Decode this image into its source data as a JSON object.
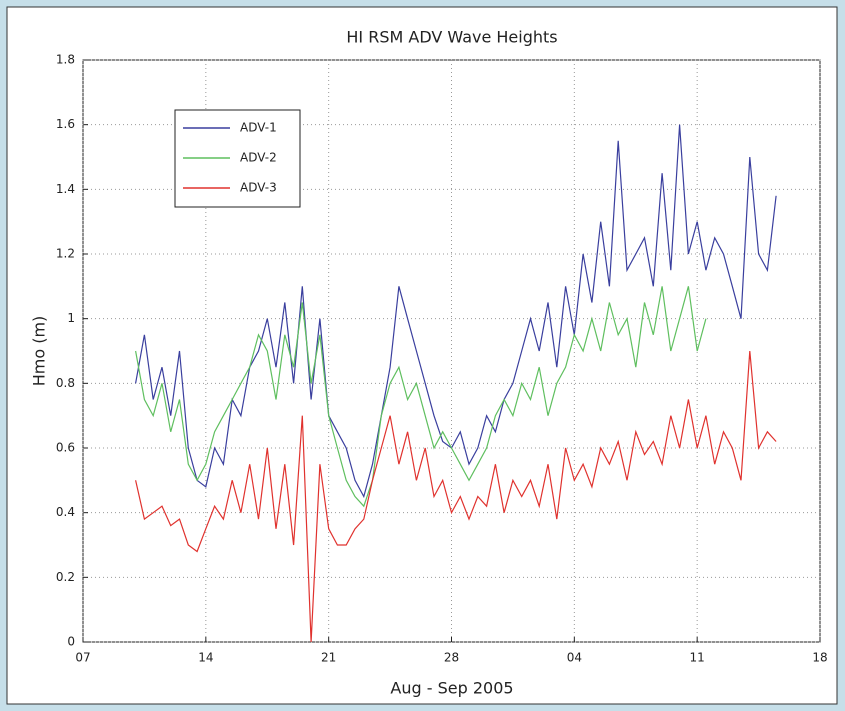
{
  "chart_data": {
    "type": "line",
    "title": "HI RSM ADV Wave Heights",
    "x_label": "Aug - Sep 2005",
    "y_label": "Hmo (m)",
    "x": [
      10,
      10.5,
      11,
      11.5,
      12,
      12.5,
      13,
      13.5,
      14,
      14.5,
      15,
      15.5,
      16,
      16.5,
      17,
      17.5,
      18,
      18.5,
      19,
      19.5,
      20,
      20.5,
      21,
      21.5,
      22,
      22.5,
      23,
      23.5,
      24,
      24.5,
      25,
      25.5,
      26,
      26.5,
      27,
      27.5,
      28,
      28.5,
      29,
      29.5,
      30,
      30.5,
      31,
      31.5,
      32,
      32.5,
      33,
      33.5,
      34,
      34.5,
      35,
      35.5,
      36,
      36.5,
      37,
      37.5,
      38,
      38.5,
      39,
      39.5,
      40,
      40.5,
      41,
      41.5,
      42,
      42.5,
      43,
      43.5,
      44,
      44.5,
      45,
      45.5,
      46,
      46.5
    ],
    "series": [
      {
        "name": "ADV-1",
        "color": "#3a3f9e",
        "values": [
          0.8,
          0.95,
          0.75,
          0.85,
          0.7,
          0.9,
          0.6,
          0.5,
          0.48,
          0.6,
          0.55,
          0.75,
          0.7,
          0.85,
          0.9,
          1.0,
          0.85,
          1.05,
          0.8,
          1.1,
          0.75,
          1.0,
          0.7,
          0.65,
          0.6,
          0.5,
          0.45,
          0.55,
          0.7,
          0.85,
          1.1,
          1.0,
          0.9,
          0.8,
          0.7,
          0.62,
          0.6,
          0.65,
          0.55,
          0.6,
          0.7,
          0.65,
          0.75,
          0.8,
          0.9,
          1.0,
          0.9,
          1.05,
          0.85,
          1.1,
          0.95,
          1.2,
          1.05,
          1.3,
          1.1,
          1.55,
          1.15,
          1.2,
          1.25,
          1.1,
          1.45,
          1.15,
          1.6,
          1.2,
          1.3,
          1.15,
          1.25,
          1.2,
          1.1,
          1.0,
          1.5,
          1.2,
          1.15,
          1.38
        ]
      },
      {
        "name": "ADV-2",
        "color": "#5fbf5f",
        "values": [
          0.9,
          0.75,
          0.7,
          0.8,
          0.65,
          0.75,
          0.55,
          0.5,
          0.55,
          0.65,
          0.7,
          0.75,
          0.8,
          0.85,
          0.95,
          0.9,
          0.75,
          0.95,
          0.85,
          1.05,
          0.8,
          0.95,
          0.7,
          0.6,
          0.5,
          0.45,
          0.42,
          0.5,
          0.7,
          0.8,
          0.85,
          0.75,
          0.8,
          0.7,
          0.6,
          0.65,
          0.6,
          0.55,
          0.5,
          0.55,
          0.6,
          0.7,
          0.75,
          0.7,
          0.8,
          0.75,
          0.85,
          0.7,
          0.8,
          0.85,
          0.95,
          0.9,
          1.0,
          0.9,
          1.05,
          0.95,
          1.0,
          0.85,
          1.05,
          0.95,
          1.1,
          0.9,
          1.0,
          1.1,
          0.9,
          1.0,
          null,
          null,
          null,
          null,
          null,
          null,
          null,
          null
        ]
      },
      {
        "name": "ADV-3",
        "color": "#e0322e",
        "values": [
          0.5,
          0.38,
          0.4,
          0.42,
          0.36,
          0.38,
          0.3,
          0.28,
          0.35,
          0.42,
          0.38,
          0.5,
          0.4,
          0.55,
          0.38,
          0.6,
          0.35,
          0.55,
          0.3,
          0.7,
          0,
          0.55,
          0.35,
          0.3,
          0.3,
          0.35,
          0.38,
          0.5,
          0.6,
          0.7,
          0.55,
          0.65,
          0.5,
          0.6,
          0.45,
          0.5,
          0.4,
          0.45,
          0.38,
          0.45,
          0.42,
          0.55,
          0.4,
          0.5,
          0.45,
          0.5,
          0.42,
          0.55,
          0.38,
          0.6,
          0.5,
          0.55,
          0.48,
          0.6,
          0.55,
          0.62,
          0.5,
          0.65,
          0.58,
          0.62,
          0.55,
          0.7,
          0.6,
          0.75,
          0.6,
          0.7,
          0.55,
          0.65,
          0.6,
          0.5,
          0.9,
          0.6,
          0.65,
          0.62
        ]
      }
    ],
    "xlim": [
      7,
      49
    ],
    "xticks": [
      {
        "value": 7,
        "label": "07"
      },
      14,
      21,
      28,
      {
        "value": 35,
        "label": "04"
      },
      {
        "value": 42,
        "label": "11"
      },
      {
        "value": 49,
        "label": "18"
      }
    ],
    "ylim": [
      0,
      1.8
    ],
    "yticks": [
      0,
      0.2,
      0.4,
      0.6,
      0.8,
      1,
      1.2,
      1.4,
      1.6,
      1.8
    ],
    "grid": true,
    "legend": "upper left"
  }
}
